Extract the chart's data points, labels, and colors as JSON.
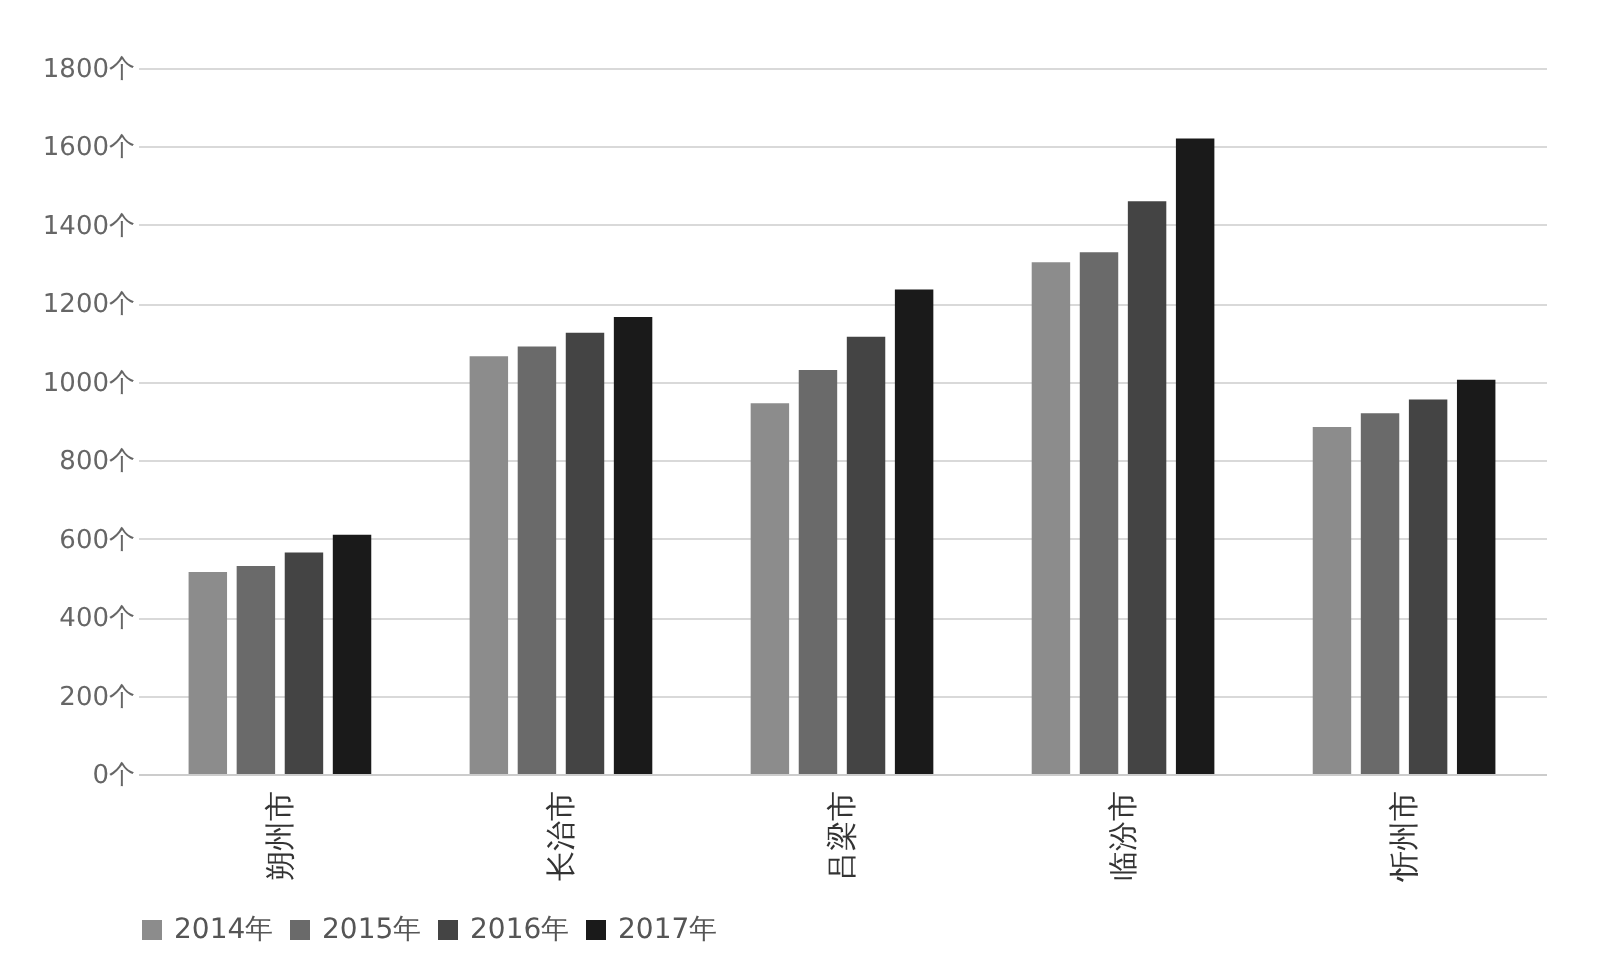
{
  "chart_data": {
    "type": "bar",
    "categories": [
      "朔州市",
      "长治市",
      "吕梁市",
      "临汾市",
      "忻州市"
    ],
    "series": [
      {
        "name": "2014年",
        "color": "#8c8c8c",
        "values": [
          515,
          1065,
          945,
          1305,
          885
        ]
      },
      {
        "name": "2015年",
        "color": "#6a6a6a",
        "values": [
          530,
          1090,
          1030,
          1330,
          920
        ]
      },
      {
        "name": "2016年",
        "color": "#444444",
        "values": [
          565,
          1125,
          1115,
          1460,
          955
        ]
      },
      {
        "name": "2017年",
        "color": "#1a1a1a",
        "values": [
          610,
          1165,
          1235,
          1620,
          1005
        ]
      }
    ],
    "ylim": [
      0,
      1800
    ],
    "yticks": [
      {
        "value": 0,
        "label": "0个"
      },
      {
        "value": 200,
        "label": "200个"
      },
      {
        "value": 400,
        "label": "400个"
      },
      {
        "value": 600,
        "label": "600个"
      },
      {
        "value": 800,
        "label": "800个"
      },
      {
        "value": 1000,
        "label": "1000个"
      },
      {
        "value": 1200,
        "label": "1200个"
      },
      {
        "value": 1400,
        "label": "1400个"
      },
      {
        "value": 1600,
        "label": "1600个"
      },
      {
        "value": 1800,
        "label": "1800个"
      }
    ],
    "grid": "y",
    "legend": "bottom"
  }
}
